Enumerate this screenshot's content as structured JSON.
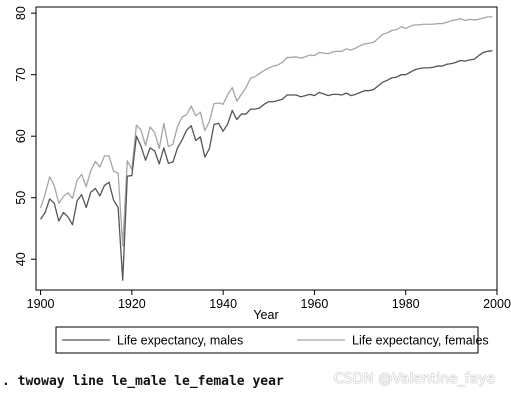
{
  "chart_data": {
    "type": "line",
    "title": "",
    "xlabel": "Year",
    "ylabel": "",
    "xlim": [
      1899,
      2000
    ],
    "ylim": [
      35,
      81
    ],
    "x_ticks": [
      1900,
      1920,
      1940,
      1960,
      1980,
      2000
    ],
    "y_ticks": [
      40,
      50,
      60,
      70,
      80
    ],
    "grid": false,
    "legend_position": "bottom",
    "x": [
      1900,
      1901,
      1902,
      1903,
      1904,
      1905,
      1906,
      1907,
      1908,
      1909,
      1910,
      1911,
      1912,
      1913,
      1914,
      1915,
      1916,
      1917,
      1918,
      1919,
      1920,
      1921,
      1922,
      1923,
      1924,
      1925,
      1926,
      1927,
      1928,
      1929,
      1930,
      1931,
      1932,
      1933,
      1934,
      1935,
      1936,
      1937,
      1938,
      1939,
      1940,
      1941,
      1942,
      1943,
      1944,
      1945,
      1946,
      1947,
      1948,
      1949,
      1950,
      1951,
      1952,
      1953,
      1954,
      1955,
      1956,
      1957,
      1958,
      1959,
      1960,
      1961,
      1962,
      1963,
      1964,
      1965,
      1966,
      1967,
      1968,
      1969,
      1970,
      1971,
      1972,
      1973,
      1974,
      1975,
      1976,
      1977,
      1978,
      1979,
      1980,
      1981,
      1982,
      1983,
      1984,
      1985,
      1986,
      1987,
      1988,
      1989,
      1990,
      1991,
      1992,
      1993,
      1994,
      1995,
      1996,
      1997,
      1998,
      1999
    ],
    "series": [
      {
        "name": "Life expectancy, males",
        "color": "#555555",
        "values": [
          46.5,
          47.6,
          49.8,
          49.1,
          46.2,
          47.6,
          46.9,
          45.6,
          49.5,
          50.5,
          48.4,
          50.9,
          51.5,
          50.3,
          52.0,
          52.5,
          49.6,
          48.4,
          36.6,
          53.5,
          53.6,
          60.0,
          58.4,
          56.1,
          58.1,
          57.6,
          55.5,
          58.1,
          55.6,
          55.8,
          58.1,
          59.4,
          61.0,
          61.7,
          59.3,
          59.9,
          56.6,
          58.0,
          61.9,
          62.1,
          60.8,
          62.0,
          64.2,
          62.7,
          63.6,
          63.6,
          64.4,
          64.4,
          64.6,
          65.2,
          65.6,
          65.6,
          65.8,
          66.0,
          66.7,
          66.7,
          66.7,
          66.4,
          66.6,
          66.8,
          66.6,
          67.1,
          66.9,
          66.6,
          66.8,
          66.8,
          66.7,
          67.0,
          66.6,
          66.8,
          67.1,
          67.4,
          67.4,
          67.6,
          68.2,
          68.8,
          69.1,
          69.5,
          69.6,
          70.0,
          70.0,
          70.4,
          70.8,
          71.0,
          71.1,
          71.1,
          71.2,
          71.4,
          71.4,
          71.7,
          71.8,
          72.0,
          72.3,
          72.2,
          72.4,
          72.5,
          73.1,
          73.6,
          73.8,
          73.9
        ]
      },
      {
        "name": "Life expectancy, females",
        "color": "#a6a6a6",
        "values": [
          48.3,
          50.6,
          53.4,
          52.0,
          49.1,
          50.2,
          50.8,
          49.9,
          52.8,
          53.8,
          51.8,
          54.4,
          55.9,
          55.0,
          56.8,
          56.8,
          54.3,
          54.0,
          42.2,
          56.0,
          54.6,
          61.8,
          61.0,
          58.5,
          61.5,
          60.6,
          58.0,
          62.1,
          58.3,
          58.7,
          61.6,
          63.1,
          63.5,
          64.9,
          63.3,
          63.9,
          60.9,
          62.4,
          65.3,
          65.4,
          65.2,
          66.8,
          67.9,
          65.7,
          66.8,
          67.9,
          69.4,
          69.7,
          70.2,
          70.7,
          71.1,
          71.4,
          71.6,
          72.0,
          72.8,
          72.8,
          72.9,
          72.7,
          72.9,
          73.2,
          73.1,
          73.6,
          73.5,
          73.4,
          73.7,
          73.8,
          73.8,
          74.2,
          74.0,
          74.3,
          74.7,
          75.0,
          75.1,
          75.3,
          75.9,
          76.6,
          76.8,
          77.2,
          77.3,
          77.8,
          77.5,
          77.9,
          78.1,
          78.1,
          78.2,
          78.2,
          78.2,
          78.3,
          78.3,
          78.5,
          78.8,
          78.9,
          79.1,
          78.8,
          79.0,
          78.9,
          79.0,
          79.2,
          79.4,
          79.4
        ]
      }
    ]
  },
  "command": ". twoway line le_male le_female year",
  "watermark": "CSDN @Valentine_faye"
}
